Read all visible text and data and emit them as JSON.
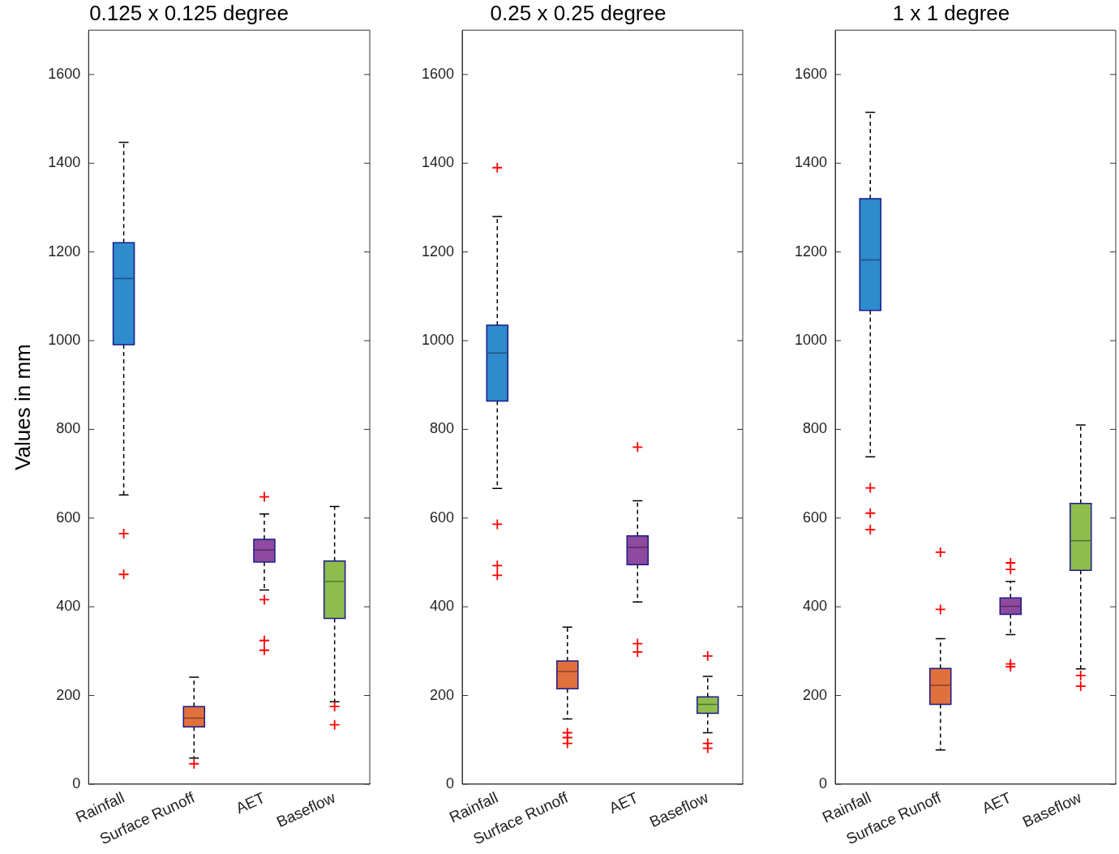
{
  "chart_data": [
    {
      "type": "box",
      "title": "0.125 x 0.125 degree",
      "ylabel": "Values in mm",
      "categories": [
        "Rainfall",
        "Surface Runoff",
        "AET",
        "Baseflow"
      ],
      "colors": [
        "#2e8bcc",
        "#e0703c",
        "#8e4a9e",
        "#8ebd4e"
      ],
      "ylim": [
        0,
        1700
      ],
      "yticks": [
        0,
        200,
        400,
        600,
        800,
        1000,
        1200,
        1400,
        1600
      ],
      "grid": false,
      "legend": false,
      "boxes": [
        {
          "low": 652,
          "q1": 991,
          "median": 1140,
          "q3": 1221,
          "high": 1447,
          "outliers": [
            565,
            473
          ]
        },
        {
          "low": 59,
          "q1": 129,
          "median": 149,
          "q3": 175,
          "high": 241,
          "outliers": [
            46
          ]
        },
        {
          "low": 438,
          "q1": 501,
          "median": 528,
          "q3": 552,
          "high": 609,
          "outliers": [
            648,
            416,
            324,
            302
          ]
        },
        {
          "low": 186,
          "q1": 374,
          "median": 457,
          "q3": 503,
          "high": 626,
          "outliers": [
            175,
            134
          ]
        }
      ]
    },
    {
      "type": "box",
      "title": "0.25 x 0.25 degree",
      "categories": [
        "Rainfall",
        "Surface Runoff",
        "AET",
        "Baseflow"
      ],
      "colors": [
        "#2e8bcc",
        "#e0703c",
        "#8e4a9e",
        "#8ebd4e"
      ],
      "ylim": [
        0,
        1700
      ],
      "yticks": [
        0,
        200,
        400,
        600,
        800,
        1000,
        1200,
        1400,
        1600
      ],
      "grid": false,
      "legend": false,
      "boxes": [
        {
          "low": 667,
          "q1": 864,
          "median": 972,
          "q3": 1035,
          "high": 1280,
          "outliers": [
            1390,
            586,
            493,
            471
          ]
        },
        {
          "low": 147,
          "q1": 215,
          "median": 254,
          "q3": 278,
          "high": 354,
          "outliers": [
            116,
            105,
            92
          ]
        },
        {
          "low": 411,
          "q1": 495,
          "median": 534,
          "q3": 560,
          "high": 639,
          "outliers": [
            760,
            317,
            298
          ]
        },
        {
          "low": 116,
          "q1": 160,
          "median": 180,
          "q3": 197,
          "high": 243,
          "outliers": [
            289,
            92,
            81
          ]
        }
      ]
    },
    {
      "type": "box",
      "title": "1 x 1 degree",
      "categories": [
        "Rainfall",
        "Surface Runoff",
        "AET",
        "Baseflow"
      ],
      "colors": [
        "#2e8bcc",
        "#e0703c",
        "#8e4a9e",
        "#8ebd4e"
      ],
      "ylim": [
        0,
        1700
      ],
      "yticks": [
        0,
        200,
        400,
        600,
        800,
        1000,
        1200,
        1400,
        1600
      ],
      "grid": false,
      "legend": false,
      "boxes": [
        {
          "low": 738,
          "q1": 1068,
          "median": 1182,
          "q3": 1320,
          "high": 1515,
          "outliers": [
            668,
            611,
            574
          ]
        },
        {
          "low": 77,
          "q1": 180,
          "median": 223,
          "q3": 261,
          "high": 328,
          "outliers": [
            523,
            394
          ]
        },
        {
          "low": 337,
          "q1": 383,
          "median": 401,
          "q3": 420,
          "high": 457,
          "outliers": [
            499,
            484,
            271,
            265
          ]
        },
        {
          "low": 260,
          "q1": 482,
          "median": 549,
          "q3": 633,
          "high": 810,
          "outliers": [
            245,
            221
          ]
        }
      ]
    }
  ]
}
